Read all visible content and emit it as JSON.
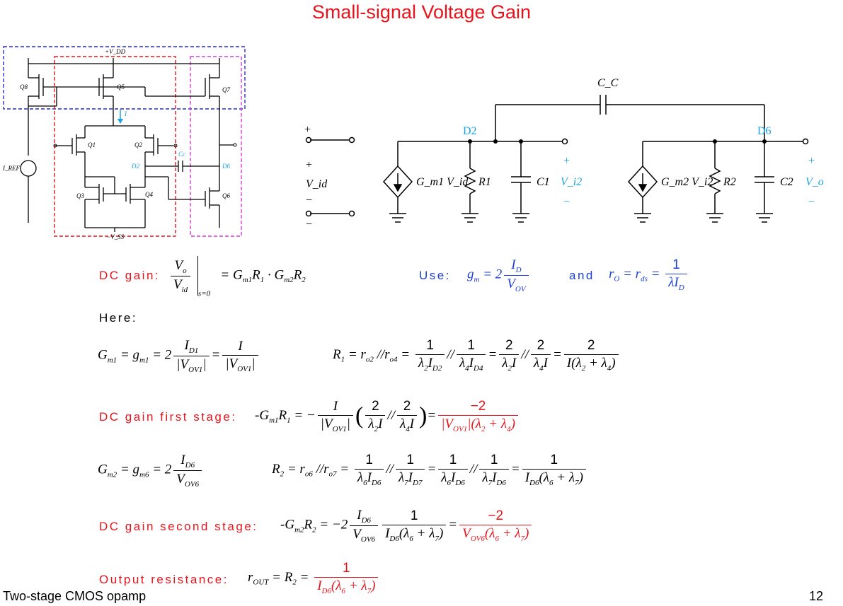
{
  "title": "Small-signal Voltage Gain",
  "circuit_labels": {
    "vdd": "+V_DD",
    "vss": "−V_SS",
    "iref": "I_REF",
    "q8": "Q8",
    "q5": "Q5",
    "q7": "Q7",
    "q1": "Q1",
    "q2": "Q2",
    "q3": "Q3",
    "q4": "Q4",
    "q6": "Q6",
    "i": "I",
    "cc": "Cc",
    "d2": "D2",
    "d6": "D6"
  },
  "model_labels": {
    "cc": "C_C",
    "d2": "D2",
    "d6": "D6",
    "gm1": "G_m1 V_id",
    "r1": "R1",
    "c1": "C1",
    "vi2": "V_i2",
    "gm2": "G_m2 V_i2",
    "r2": "R2",
    "c2": "C2",
    "vo": "V_o",
    "vid": "V_id"
  },
  "labels": {
    "dc_gain": "DC gain:",
    "use": "Use:",
    "and": "and",
    "here": "Here:",
    "first_stage": "DC gain first stage:",
    "second_stage": "DC gain second stage:",
    "output_resistance": "Output resistance:"
  },
  "footer": {
    "left": "Two-stage CMOS opamp",
    "page": "12"
  }
}
